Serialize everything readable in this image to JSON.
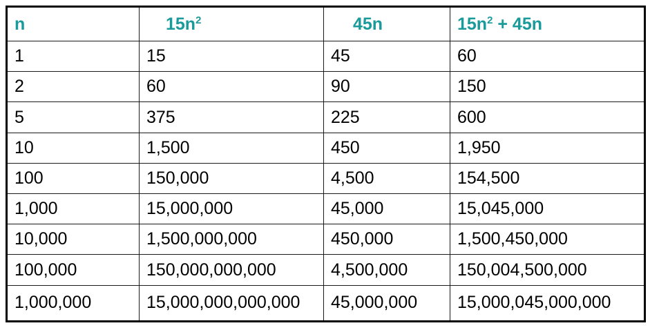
{
  "table": {
    "headers": {
      "n": "n",
      "col2_base": "15n",
      "col2_exp": "2",
      "col3": "45n",
      "col4_base": "15n",
      "col4_exp": "2",
      "col4_tail": " + 45n"
    },
    "rows": [
      [
        "1",
        "15",
        "45",
        "60"
      ],
      [
        "2",
        "60",
        "90",
        "150"
      ],
      [
        "5",
        "375",
        "225",
        "600"
      ],
      [
        "10",
        "1,500",
        "450",
        "1,950"
      ],
      [
        "100",
        "150,000",
        "4,500",
        "154,500"
      ],
      [
        "1,000",
        "15,000,000",
        "45,000",
        "15,045,000"
      ],
      [
        "10,000",
        "1,500,000,000",
        "450,000",
        "1,500,450,000"
      ],
      [
        "100,000",
        "150,000,000,000",
        "4,500,000",
        "150,004,500,000"
      ],
      [
        "1,000,000",
        "15,000,000,000,000",
        "45,000,000",
        "15,000,045,000,000"
      ]
    ],
    "colors": {
      "header_text": "#1a9a9a",
      "border": "#1a1a1a",
      "cell_text": "#000000"
    }
  }
}
